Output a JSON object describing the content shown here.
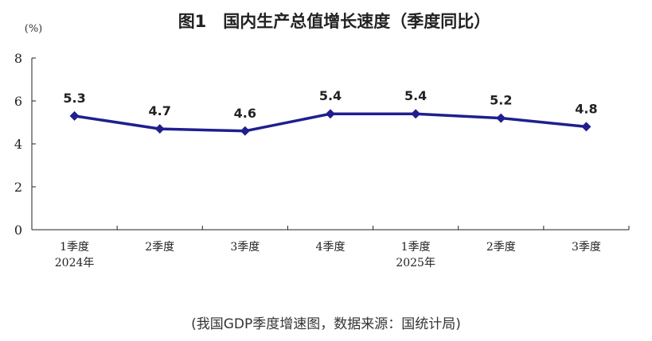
{
  "chart_data": {
    "type": "line",
    "title": "图1　国内生产总值增长速度（季度同比）",
    "unit": "(%)",
    "categories": [
      [
        "1季度",
        "2024年"
      ],
      [
        "2季度"
      ],
      [
        "3季度"
      ],
      [
        "4季度"
      ],
      [
        "1季度",
        "2025年"
      ],
      [
        "2季度"
      ],
      [
        "3季度"
      ]
    ],
    "series": [
      {
        "values": [
          5.3,
          4.7,
          4.6,
          5.4,
          5.4,
          5.2,
          4.8
        ],
        "color": "#1f1f8f",
        "marker": "diamond"
      }
    ],
    "data_labels": [
      "5.3",
      "4.7",
      "4.6",
      "5.4",
      "5.4",
      "5.2",
      "4.8"
    ],
    "yticks": [
      "0",
      "2",
      "4",
      "6",
      "8"
    ],
    "ylim": [
      0,
      8
    ],
    "grid": false
  },
  "caption": "(我国GDP季度增速图，数据来源：国统计局)"
}
